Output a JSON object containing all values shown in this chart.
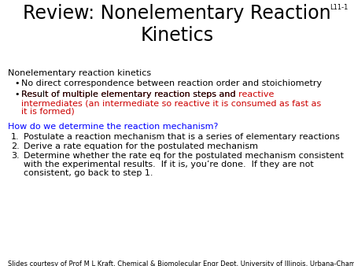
{
  "title_line1": "Review: Nonelementary Reaction",
  "title_line2": "Kinetics",
  "slide_id": "L11-1",
  "bg_color": "#ffffff",
  "title_color": "#000000",
  "title_fontsize": 17,
  "slide_id_fontsize": 6,
  "body_fontsize": 8.0,
  "footer_fontsize": 6.0,
  "body_color": "#000000",
  "red_color": "#cc0000",
  "blue_color": "#0000ff",
  "footer_text": "Slides courtesy of Prof M L Kraft, Chemical & Biomolecular Engr Dept, University of Illinois, Urbana-Champaign.",
  "section_header": "Nonelementary reaction kinetics",
  "bullet1": "No direct correspondence between reaction order and stoichiometry",
  "bullet2_black": "Result of multiple elementary reaction steps and ",
  "bullet2_red_line1": "reactive",
  "bullet2_red_line2": "intermediates (an intermediate so reactive it is consumed as fast as",
  "bullet2_red_line3": "it is formed)",
  "blue_question": "How do we determine the reaction mechanism?",
  "item1": "Postulate a reaction mechanism that is a series of elementary reactions",
  "item2": "Derive a rate equation for the postulated mechanism",
  "item3_line1": "Determine whether the rate eq for the postulated mechanism consistent",
  "item3_line2": "with the experimental results.  If it is, you’re done.  If they are not",
  "item3_line3": "consistent, go back to step 1."
}
